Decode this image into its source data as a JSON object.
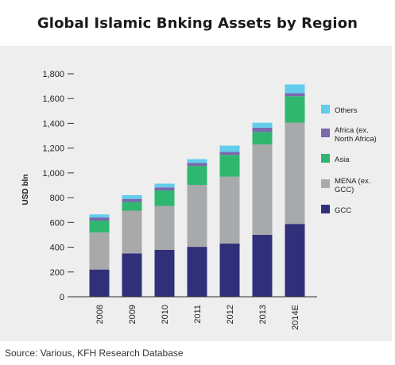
{
  "chart_data": {
    "type": "bar",
    "stacked": true,
    "title": "Global Islamic Bnking Assets by Region",
    "ylabel": "USD bln",
    "xlabel": "",
    "ylim": [
      0,
      1800
    ],
    "yticks": [
      "0",
      "200",
      "400",
      "600",
      "800",
      "1,000",
      "1,200",
      "1,400",
      "1,600",
      "1,800"
    ],
    "categories": [
      "2008",
      "2009",
      "2010",
      "2011",
      "2012",
      "2013",
      "2014E"
    ],
    "series": [
      {
        "name": "GCC",
        "color": "#30307a",
        "values": [
          220,
          350,
          378,
          403,
          430,
          500,
          588
        ]
      },
      {
        "name": "MENA (ex. GCC)",
        "color": "#a8a9ab",
        "values": [
          300,
          345,
          355,
          500,
          540,
          730,
          818
        ]
      },
      {
        "name": "Asia",
        "color": "#2fb76f",
        "values": [
          95,
          70,
          125,
          153,
          175,
          100,
          213
        ]
      },
      {
        "name": "Africa (ex. North Africa)",
        "color": "#7b68ae",
        "values": [
          25,
          25,
          25,
          25,
          25,
          35,
          25
        ]
      },
      {
        "name": "Others",
        "color": "#62cdec",
        "values": [
          25,
          30,
          30,
          30,
          50,
          40,
          70
        ]
      }
    ],
    "legend": {
      "placement": "right",
      "order": [
        "Others",
        "Africa (ex. North Africa)",
        "Asia",
        "MENA (ex. GCC)",
        "GCC"
      ],
      "lines": {
        "Others": [
          "Others"
        ],
        "Africa (ex. North Africa)": [
          "Africa (ex.",
          "North Africa)"
        ],
        "Asia": [
          "Asia"
        ],
        "MENA (ex. GCC)": [
          "MENA (ex.",
          "GCC)"
        ],
        "GCC": [
          "GCC"
        ]
      }
    },
    "grid": false
  },
  "source": "Source: Various, KFH Research Database"
}
